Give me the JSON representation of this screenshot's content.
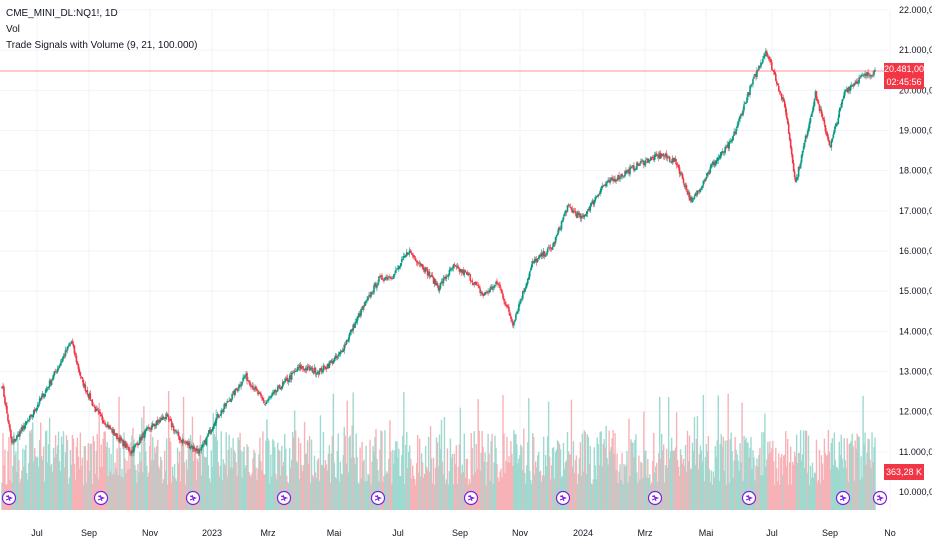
{
  "legend": {
    "symbol": "CME_MINI_DL:NQ1!, 1D",
    "indicator_vol": "Vol",
    "indicator_signals": "Trade Signals with Volume (9, 21, 100.000)"
  },
  "last_price": {
    "value": "20.481,00",
    "countdown": "02:45:56",
    "color": "#f23645"
  },
  "last_volume": {
    "value": "363,28 K"
  },
  "colors": {
    "up": "#089981",
    "down": "#f23645",
    "vol_up": "#9fd9cf",
    "vol_down": "#f7b2b7",
    "grid": "#f0f3fa",
    "signal": "#7b1fe0",
    "axis_text": "#131722"
  },
  "signal_icon": "arrow-signal-icon",
  "chart_data": {
    "type": "candlestick",
    "y_ticks": [
      "22.000,00",
      "21.000,00",
      "20.000,00",
      "19.000,00",
      "18.000,00",
      "17.000,00",
      "16.000,00",
      "15.000,00",
      "14.000,00",
      "13.000,00",
      "12.000,00",
      "11.000,00",
      "10.000,00"
    ],
    "ylim": [
      10000,
      22000
    ],
    "x_ticks": [
      "Jul",
      "Sep",
      "Nov",
      "2023",
      "Mrz",
      "Mai",
      "Jul",
      "Sep",
      "Nov",
      "2024",
      "Mrz",
      "Mai",
      "Jul",
      "Sep",
      "No"
    ],
    "series": [
      {
        "name": "NQ1!",
        "anchors": [
          {
            "t": 0,
            "close": 12700
          },
          {
            "t": 10,
            "close": 11200
          },
          {
            "t": 30,
            "close": 11900
          },
          {
            "t": 50,
            "close": 12800
          },
          {
            "t": 70,
            "close": 13750
          },
          {
            "t": 80,
            "close": 12800
          },
          {
            "t": 95,
            "close": 12000
          },
          {
            "t": 115,
            "close": 11400
          },
          {
            "t": 130,
            "close": 11000
          },
          {
            "t": 145,
            "close": 11500
          },
          {
            "t": 165,
            "close": 11900
          },
          {
            "t": 180,
            "close": 11300
          },
          {
            "t": 200,
            "close": 11000
          },
          {
            "t": 215,
            "close": 11800
          },
          {
            "t": 235,
            "close": 12500
          },
          {
            "t": 245,
            "close": 12900
          },
          {
            "t": 265,
            "close": 12200
          },
          {
            "t": 280,
            "close": 12600
          },
          {
            "t": 300,
            "close": 13100
          },
          {
            "t": 320,
            "close": 13000
          },
          {
            "t": 340,
            "close": 13400
          },
          {
            "t": 360,
            "close": 14400
          },
          {
            "t": 380,
            "close": 15300
          },
          {
            "t": 395,
            "close": 15400
          },
          {
            "t": 410,
            "close": 16000
          },
          {
            "t": 425,
            "close": 15600
          },
          {
            "t": 440,
            "close": 15100
          },
          {
            "t": 455,
            "close": 15600
          },
          {
            "t": 470,
            "close": 15400
          },
          {
            "t": 485,
            "close": 14900
          },
          {
            "t": 500,
            "close": 15200
          },
          {
            "t": 515,
            "close": 14200
          },
          {
            "t": 535,
            "close": 15700
          },
          {
            "t": 555,
            "close": 16100
          },
          {
            "t": 570,
            "close": 17100
          },
          {
            "t": 585,
            "close": 16800
          },
          {
            "t": 605,
            "close": 17600
          },
          {
            "t": 625,
            "close": 17900
          },
          {
            "t": 645,
            "close": 18200
          },
          {
            "t": 665,
            "close": 18400
          },
          {
            "t": 680,
            "close": 18200
          },
          {
            "t": 695,
            "close": 17200
          },
          {
            "t": 715,
            "close": 18100
          },
          {
            "t": 735,
            "close": 18700
          },
          {
            "t": 755,
            "close": 20100
          },
          {
            "t": 770,
            "close": 21000
          },
          {
            "t": 780,
            "close": 20300
          },
          {
            "t": 790,
            "close": 19500
          },
          {
            "t": 800,
            "close": 17700
          },
          {
            "t": 820,
            "close": 19900
          },
          {
            "t": 835,
            "close": 18600
          },
          {
            "t": 850,
            "close": 20000
          },
          {
            "t": 865,
            "close": 20300
          },
          {
            "t": 880,
            "close": 20481
          }
        ]
      }
    ],
    "signal_markers": [
      "Jun",
      "Aug",
      "Nov",
      "Jan",
      "Apr",
      "Jul",
      "Sep",
      "Dec",
      "Feb",
      "Jun",
      "Aug",
      "Sep",
      "Oct"
    ]
  }
}
